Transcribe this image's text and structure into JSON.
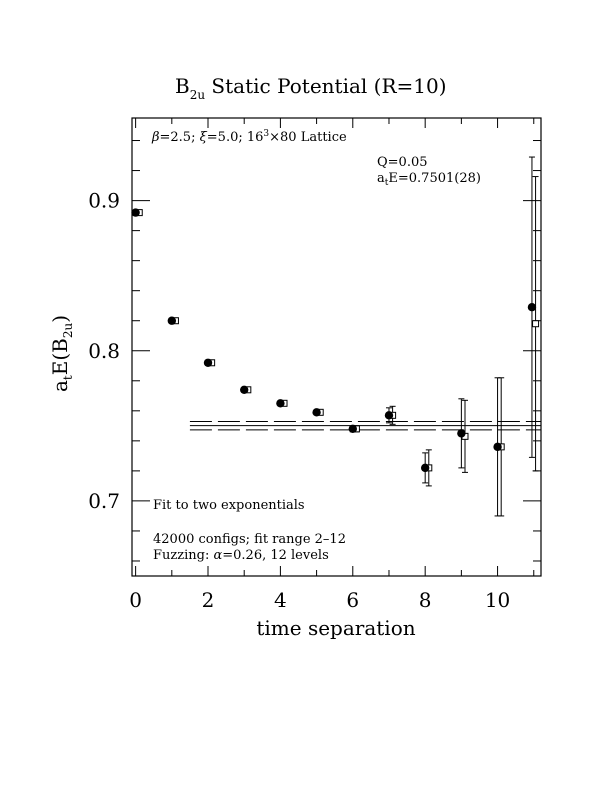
{
  "chart_data": {
    "type": "scatter",
    "title_main": "B",
    "title_sub": "2u",
    "title_rest": " Static Potential (R=10)",
    "xlabel": "time separation",
    "ylabel_a": "a",
    "ylabel_t": "t",
    "ylabel_mid": "E(B",
    "ylabel_sub": "2u",
    "ylabel_end": ")",
    "xlim": [
      -0.1,
      11.2
    ],
    "ylim": [
      0.65,
      0.955
    ],
    "xticks": [
      0,
      2,
      4,
      6,
      8,
      10
    ],
    "xtick_labels": [
      "0",
      "2",
      "4",
      "6",
      "8",
      "10"
    ],
    "yticks": [
      0.7,
      0.8,
      0.9
    ],
    "ytick_labels": [
      "0.7",
      "0.8",
      "0.9"
    ],
    "annotations": {
      "lattice_part1": "=2.5; ",
      "lattice_part2": "=5.0; 16",
      "lattice_sup": "3",
      "lattice_part3": "×80 Lattice",
      "beta_symbol": "β",
      "xi_symbol": "ξ",
      "q_value": "Q=0.05",
      "ate_a": "a",
      "ate_t": "t",
      "ate_rest": "E=0.7501(28)",
      "fit_type": "Fit to two exponentials",
      "configs": "42000 configs; fit range 2–12",
      "fuzzing_prefix": "Fuzzing: ",
      "alpha_symbol": "α",
      "fuzzing_rest": "=0.26, 12 levels"
    },
    "fit": {
      "value": 0.7501,
      "error": 0.0028,
      "x_start": 1.5,
      "x_end": 11.2
    },
    "series": [
      {
        "marker": "filled-circle",
        "points": [
          {
            "x": 0,
            "y": 0.892,
            "err": 0.0
          },
          {
            "x": 1,
            "y": 0.82,
            "err": 0.0
          },
          {
            "x": 2,
            "y": 0.792,
            "err": 0.0
          },
          {
            "x": 3,
            "y": 0.774,
            "err": 0.0
          },
          {
            "x": 4,
            "y": 0.765,
            "err": 0.0
          },
          {
            "x": 5,
            "y": 0.759,
            "err": 0.0
          },
          {
            "x": 6,
            "y": 0.748,
            "err": 0.0
          },
          {
            "x": 7,
            "y": 0.757,
            "err": 0.0
          },
          {
            "x": 8,
            "y": 0.722,
            "err": 0.0
          },
          {
            "x": 9,
            "y": 0.745,
            "err": 0.0
          },
          {
            "x": 10,
            "y": 0.736,
            "err": 0.0
          },
          {
            "x": 10.95,
            "y": 0.829,
            "err": 0.0
          }
        ]
      },
      {
        "marker": "open-square",
        "points": [
          {
            "x": 0.1,
            "y": 0.892,
            "err": 0.0
          },
          {
            "x": 1.1,
            "y": 0.82,
            "err": 0.0
          },
          {
            "x": 2.1,
            "y": 0.792,
            "err": 0.0
          },
          {
            "x": 3.1,
            "y": 0.774,
            "err": 0.0
          },
          {
            "x": 4.1,
            "y": 0.765,
            "err": 0.0
          },
          {
            "x": 5.1,
            "y": 0.759,
            "err": 0.0
          },
          {
            "x": 6.1,
            "y": 0.748,
            "err": 0.002
          },
          {
            "x": 7.1,
            "y": 0.757,
            "err": 0.006
          },
          {
            "x": 8.1,
            "y": 0.722,
            "err": 0.012
          },
          {
            "x": 9.1,
            "y": 0.743,
            "err": 0.024
          },
          {
            "x": 10.1,
            "y": 0.736,
            "err": 0.046
          },
          {
            "x": 11.05,
            "y": 0.818,
            "err": 0.098
          }
        ]
      }
    ],
    "filled_err": [
      0,
      0,
      0,
      0,
      0,
      0,
      0.002,
      0.005,
      0.01,
      0.023,
      0.046,
      0.1
    ]
  }
}
